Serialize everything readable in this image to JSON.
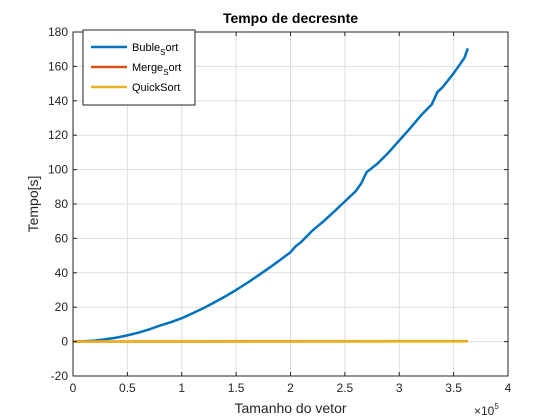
{
  "chart_data": {
    "type": "line",
    "title": "Tempo de decresnte",
    "xlabel": "Tamanho do vetor",
    "ylabel": "Tempo[s]",
    "x_exponent_label": {
      "base": "×10",
      "exp": "5"
    },
    "xlim": [
      0,
      4
    ],
    "ylim": [
      -20,
      180
    ],
    "xticks": [
      0,
      0.5,
      1,
      1.5,
      2,
      2.5,
      3,
      3.5,
      4
    ],
    "xtick_labels": [
      "0",
      "0.5",
      "1",
      "1.5",
      "2",
      "2.5",
      "3",
      "3.5",
      "4"
    ],
    "yticks": [
      -20,
      0,
      20,
      40,
      60,
      80,
      100,
      120,
      140,
      160,
      180
    ],
    "ytick_labels": [
      "-20",
      "0",
      "20",
      "40",
      "60",
      "80",
      "100",
      "120",
      "140",
      "160",
      "180"
    ],
    "grid": true,
    "legend_position": "top-left",
    "series": [
      {
        "name": "Buble_Sort",
        "legend_main": "Buble",
        "legend_sub": "S",
        "legend_rest": "ort",
        "color": "#0072BD",
        "x": [
          0,
          0.1,
          0.2,
          0.3,
          0.4,
          0.5,
          0.6,
          0.7,
          0.8,
          0.9,
          1.0,
          1.1,
          1.2,
          1.3,
          1.4,
          1.5,
          1.6,
          1.7,
          1.8,
          1.9,
          2.0,
          2.05,
          2.1,
          2.2,
          2.3,
          2.4,
          2.5,
          2.6,
          2.65,
          2.7,
          2.8,
          2.9,
          3.0,
          3.1,
          3.2,
          3.3,
          3.35,
          3.4,
          3.5,
          3.6,
          3.63
        ],
        "y": [
          0,
          0.15,
          0.6,
          1.4,
          2.3,
          3.6,
          5.2,
          7.1,
          9.3,
          11.3,
          13.6,
          16.5,
          19.5,
          22.8,
          26.3,
          30.0,
          34.0,
          38.3,
          42.7,
          47.2,
          52.0,
          55.5,
          58.0,
          64.5,
          69.7,
          75.5,
          81.5,
          87.5,
          92.0,
          98.5,
          103.5,
          109.8,
          117.0,
          124.0,
          131.5,
          138.0,
          145.0,
          148.0,
          156.0,
          165.0,
          170.5
        ]
      },
      {
        "name": "Merge_Sort",
        "legend_main": "Merge",
        "legend_sub": "S",
        "legend_rest": "ort",
        "color": "#D95319",
        "x": [
          0,
          1,
          2,
          3,
          3.63
        ],
        "y": [
          0,
          0.05,
          0.1,
          0.15,
          0.18
        ]
      },
      {
        "name": "QuickSort",
        "legend_main": "QuickSort",
        "legend_sub": "",
        "legend_rest": "",
        "color": "#EDB120",
        "x": [
          0,
          1,
          2,
          3,
          3.63
        ],
        "y": [
          0,
          0.03,
          0.06,
          0.09,
          0.11
        ]
      }
    ]
  }
}
